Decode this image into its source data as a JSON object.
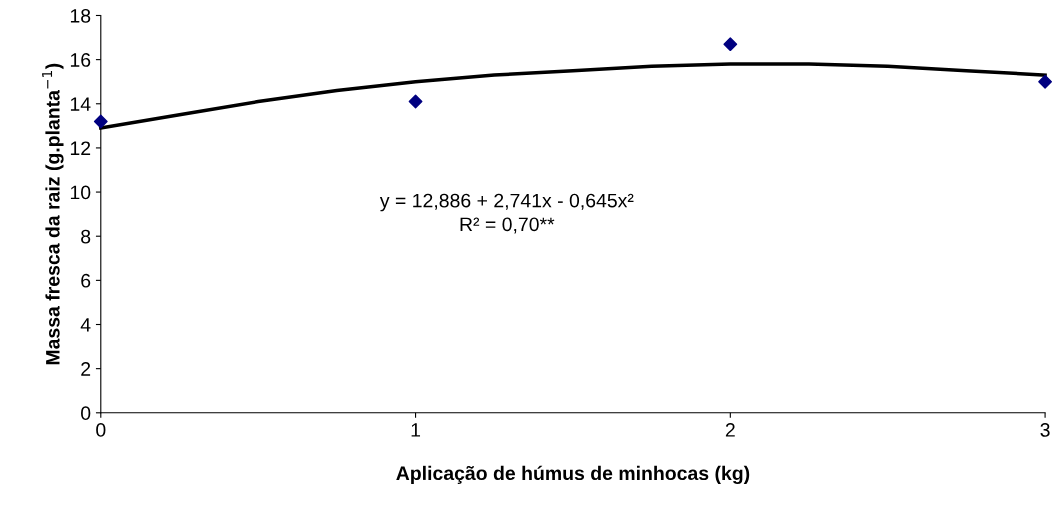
{
  "chart_data": {
    "type": "scatter",
    "xlabel": "Aplicação de húmus de minhocas (kg)",
    "ylabel": "Massa fresca da raiz (g.planta$^{−1}$)",
    "xlim": [
      0,
      3
    ],
    "xticks": [
      0,
      1,
      2,
      3
    ],
    "ylim": [
      0,
      18
    ],
    "yticks": [
      0,
      2,
      4,
      6,
      8,
      10,
      12,
      14,
      16,
      18
    ],
    "series": [
      {
        "color": "#000080",
        "marker": "diamond",
        "x": [
          0,
          1,
          2,
          3
        ],
        "values": [
          13.2,
          14.1,
          16.7,
          15.0
        ]
      },
      {
        "type": "line",
        "color": "#000000",
        "marker": "none",
        "line_style": "solid",
        "x": [
          0,
          0.25,
          0.5,
          0.75,
          1,
          1.25,
          1.5,
          1.75,
          2,
          2.25,
          2.5,
          2.75,
          3
        ],
        "values": [
          12.9,
          13.5,
          14.1,
          14.6,
          15.0,
          15.3,
          15.5,
          15.7,
          15.8,
          15.8,
          15.7,
          15.5,
          15.3
        ]
      }
    ],
    "annotations": [
      "y = 12,886 + 2,741x - 0,645x²\nR² = 0,70**"
    ],
    "grid": false,
    "legend": false
  }
}
